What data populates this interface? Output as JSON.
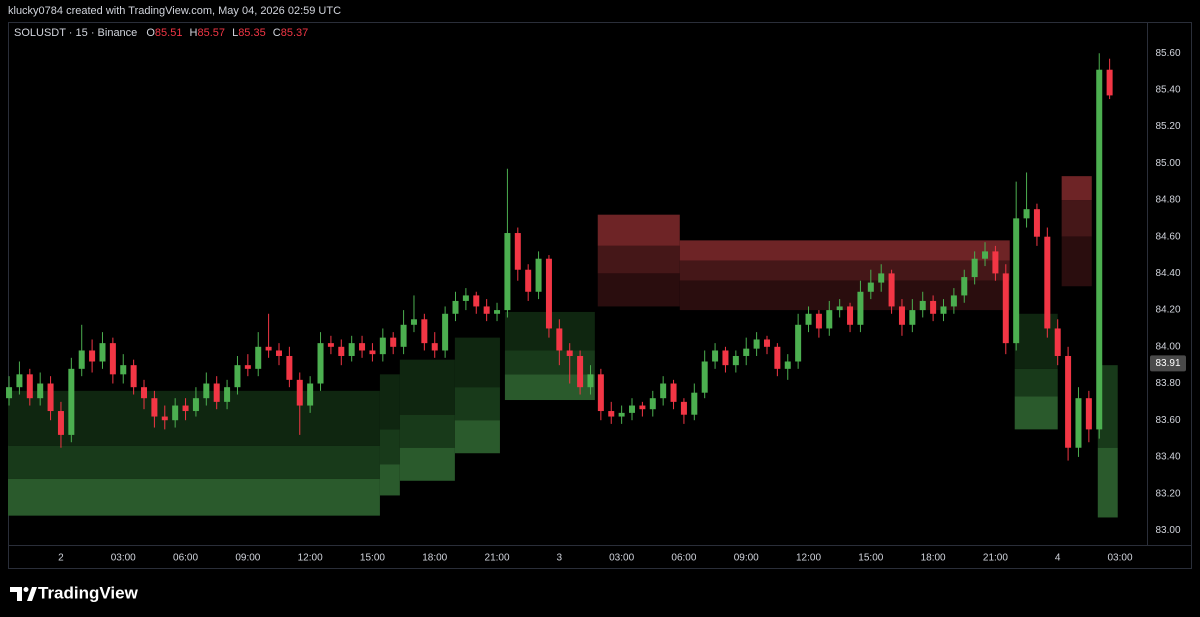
{
  "chart_data": {
    "type": "candlestick",
    "attribution": "klucky0784 created with TradingView.com, May 04, 2026 02:59 UTC",
    "title": "SOLUSDT · 15 · Binance",
    "ohlc_labels": [
      "O",
      "H",
      "L",
      "C"
    ],
    "brand": "TradingView",
    "up_color": "#4caf50",
    "down_color": "#f23645",
    "grid": false,
    "xlim": [
      -2.55,
      52.3
    ],
    "ylim": [
      82.92,
      85.77
    ],
    "xticks": [
      {
        "value": 0,
        "label": "2"
      },
      {
        "value": 3,
        "label": "03:00"
      },
      {
        "value": 6,
        "label": "06:00"
      },
      {
        "value": 9,
        "label": "09:00"
      },
      {
        "value": 12,
        "label": "12:00"
      },
      {
        "value": 15,
        "label": "15:00"
      },
      {
        "value": 18,
        "label": "18:00"
      },
      {
        "value": 21,
        "label": "21:00"
      },
      {
        "value": 24,
        "label": "3"
      },
      {
        "value": 27,
        "label": "03:00"
      },
      {
        "value": 30,
        "label": "06:00"
      },
      {
        "value": 33,
        "label": "09:00"
      },
      {
        "value": 36,
        "label": "12:00"
      },
      {
        "value": 39,
        "label": "15:00"
      },
      {
        "value": 42,
        "label": "18:00"
      },
      {
        "value": 45,
        "label": "21:00"
      },
      {
        "value": 48,
        "label": "4"
      },
      {
        "value": 51,
        "label": "03:00"
      }
    ],
    "yticks": [
      {
        "value": 83.0,
        "label": "83.00"
      },
      {
        "value": 83.2,
        "label": "83.20"
      },
      {
        "value": 83.4,
        "label": "83.40"
      },
      {
        "value": 83.6,
        "label": "83.60"
      },
      {
        "value": 83.8,
        "label": "83.80"
      },
      {
        "value": 84.0,
        "label": "84.00"
      },
      {
        "value": 84.2,
        "label": "84.20"
      },
      {
        "value": 84.4,
        "label": "84.40"
      },
      {
        "value": 84.6,
        "label": "84.60"
      },
      {
        "value": 84.8,
        "label": "84.80"
      },
      {
        "value": 85.0,
        "label": "85.00"
      },
      {
        "value": 85.2,
        "label": "85.20"
      },
      {
        "value": 85.4,
        "label": "85.40"
      },
      {
        "value": 85.6,
        "label": "85.60"
      }
    ],
    "marker_value": 83.91,
    "x": [
      -2.5,
      -2,
      -1.5,
      -1,
      -0.5,
      0,
      0.5,
      1,
      1.5,
      2,
      2.5,
      3,
      3.5,
      4,
      4.5,
      5,
      5.5,
      6,
      6.5,
      7,
      7.5,
      8,
      8.5,
      9,
      9.5,
      10,
      10.5,
      11,
      11.5,
      12,
      12.5,
      13,
      13.5,
      14,
      14.5,
      15,
      15.5,
      16,
      16.5,
      17,
      17.5,
      18,
      18.5,
      19,
      19.5,
      20,
      20.5,
      21,
      21.5,
      22,
      22.5,
      23,
      23.5,
      24,
      24.5,
      25,
      25.5,
      26,
      26.5,
      27,
      27.5,
      28,
      28.5,
      29,
      29.5,
      30,
      30.5,
      31,
      31.5,
      32,
      32.5,
      33,
      33.5,
      34,
      34.5,
      35,
      35.5,
      36,
      36.5,
      37,
      37.5,
      38,
      38.5,
      39,
      39.5,
      40,
      40.5,
      41,
      41.5,
      42,
      42.5,
      43,
      43.5,
      44,
      44.5,
      45,
      45.5,
      46,
      46.5,
      47,
      47.5,
      48,
      48.5,
      49,
      49.5,
      50,
      50.5
    ],
    "open": [
      83.72,
      83.78,
      83.85,
      83.72,
      83.8,
      83.65,
      83.52,
      83.88,
      83.98,
      83.92,
      84.02,
      83.85,
      83.9,
      83.78,
      83.72,
      83.62,
      83.6,
      83.68,
      83.65,
      83.72,
      83.8,
      83.7,
      83.78,
      83.9,
      83.88,
      84.0,
      83.98,
      83.95,
      83.82,
      83.68,
      83.8,
      84.02,
      84.0,
      83.95,
      84.02,
      83.98,
      83.96,
      84.05,
      84.0,
      84.12,
      84.15,
      84.02,
      83.98,
      84.18,
      84.25,
      84.28,
      84.22,
      84.18,
      84.2,
      84.62,
      84.42,
      84.3,
      84.48,
      84.1,
      83.98,
      83.95,
      83.78,
      83.85,
      83.65,
      83.62,
      83.64,
      83.68,
      83.66,
      83.72,
      83.8,
      83.7,
      83.63,
      83.75,
      83.92,
      83.98,
      83.9,
      83.95,
      83.99,
      84.04,
      84.0,
      83.88,
      83.92,
      84.12,
      84.18,
      84.1,
      84.2,
      84.22,
      84.12,
      84.3,
      84.35,
      84.4,
      84.22,
      84.12,
      84.2,
      84.25,
      84.18,
      84.22,
      84.28,
      84.38,
      84.48,
      84.52,
      84.4,
      84.02,
      84.7,
      84.75,
      84.6,
      84.1,
      83.95,
      83.45,
      83.72,
      83.55,
      85.51
    ],
    "high": [
      83.84,
      83.92,
      83.88,
      83.86,
      83.84,
      83.7,
      83.94,
      84.12,
      84.04,
      84.08,
      84.05,
      83.96,
      83.93,
      83.82,
      83.76,
      83.68,
      83.72,
      83.72,
      83.78,
      83.86,
      83.84,
      83.82,
      83.95,
      83.96,
      84.08,
      84.18,
      84.02,
      84.0,
      83.86,
      83.84,
      84.08,
      84.06,
      84.04,
      84.06,
      84.06,
      84.02,
      84.1,
      84.08,
      84.2,
      84.28,
      84.18,
      84.08,
      84.22,
      84.3,
      84.32,
      84.3,
      84.26,
      84.24,
      84.97,
      84.65,
      84.45,
      84.52,
      84.5,
      84.15,
      84.02,
      83.98,
      83.9,
      83.88,
      83.7,
      83.68,
      83.72,
      83.7,
      83.76,
      83.84,
      83.82,
      83.72,
      83.8,
      83.98,
      84.02,
      84.0,
      83.98,
      84.05,
      84.08,
      84.06,
      84.02,
      83.96,
      84.18,
      84.22,
      84.2,
      84.25,
      84.26,
      84.24,
      84.36,
      84.42,
      84.45,
      84.42,
      84.26,
      84.26,
      84.3,
      84.28,
      84.26,
      84.32,
      84.42,
      84.52,
      84.57,
      84.55,
      84.45,
      84.9,
      84.95,
      84.78,
      84.65,
      84.15,
      84.0,
      83.78,
      83.76,
      85.6,
      85.57
    ],
    "low": [
      83.68,
      83.74,
      83.68,
      83.68,
      83.6,
      83.45,
      83.48,
      83.84,
      83.86,
      83.88,
      83.8,
      83.8,
      83.74,
      83.66,
      83.56,
      83.55,
      83.56,
      83.6,
      83.62,
      83.68,
      83.66,
      83.66,
      83.74,
      83.84,
      83.84,
      83.94,
      83.9,
      83.78,
      83.52,
      83.64,
      83.76,
      83.96,
      83.9,
      83.92,
      83.94,
      83.92,
      83.92,
      83.96,
      83.96,
      84.08,
      83.98,
      83.94,
      83.94,
      84.14,
      84.2,
      84.18,
      84.14,
      84.14,
      84.16,
      84.36,
      84.25,
      84.26,
      84.05,
      83.9,
      83.8,
      83.74,
      83.74,
      83.6,
      83.58,
      83.58,
      83.6,
      83.62,
      83.62,
      83.68,
      83.66,
      83.58,
      83.6,
      83.72,
      83.88,
      83.86,
      83.86,
      83.9,
      83.95,
      83.96,
      83.84,
      83.82,
      83.88,
      84.08,
      84.05,
      84.06,
      84.16,
      84.08,
      84.08,
      84.26,
      84.3,
      84.18,
      84.06,
      84.08,
      84.16,
      84.14,
      84.14,
      84.18,
      84.24,
      84.34,
      84.44,
      84.36,
      83.96,
      83.98,
      84.65,
      84.55,
      84.05,
      83.9,
      83.38,
      83.4,
      83.48,
      83.5,
      85.35
    ],
    "close": [
      83.78,
      83.85,
      83.72,
      83.8,
      83.65,
      83.52,
      83.88,
      83.98,
      83.92,
      84.02,
      83.85,
      83.9,
      83.78,
      83.72,
      83.62,
      83.6,
      83.68,
      83.65,
      83.72,
      83.8,
      83.7,
      83.78,
      83.9,
      83.88,
      84.0,
      83.98,
      83.95,
      83.82,
      83.68,
      83.8,
      84.02,
      84.0,
      83.95,
      84.02,
      83.98,
      83.96,
      84.05,
      84.0,
      84.12,
      84.15,
      84.02,
      83.98,
      84.18,
      84.25,
      84.28,
      84.22,
      84.18,
      84.2,
      84.62,
      84.42,
      84.3,
      84.48,
      84.1,
      83.98,
      83.95,
      83.78,
      83.85,
      83.65,
      83.62,
      83.64,
      83.68,
      83.66,
      83.72,
      83.8,
      83.7,
      83.63,
      83.75,
      83.92,
      83.98,
      83.9,
      83.95,
      83.99,
      84.04,
      84.0,
      83.88,
      83.92,
      84.12,
      84.18,
      84.1,
      84.2,
      84.22,
      84.12,
      84.3,
      84.35,
      84.4,
      84.22,
      84.12,
      84.2,
      84.25,
      84.18,
      84.22,
      84.28,
      84.38,
      84.48,
      84.52,
      84.4,
      84.02,
      84.7,
      84.75,
      84.6,
      84.1,
      83.95,
      83.45,
      83.72,
      83.55,
      85.51,
      85.37
    ],
    "zones": [
      {
        "x": [
          -2.55,
          15.36
        ],
        "y": [
          83.46,
          83.76
        ],
        "color": "#0f2610"
      },
      {
        "x": [
          -2.55,
          15.36
        ],
        "y": [
          83.28,
          83.46
        ],
        "color": "#183a1a"
      },
      {
        "x": [
          -2.55,
          15.36
        ],
        "y": [
          83.08,
          83.28
        ],
        "color": "#2a5a2c"
      },
      {
        "x": [
          15.36,
          16.32
        ],
        "y": [
          83.55,
          83.85
        ],
        "color": "#0f2610"
      },
      {
        "x": [
          15.36,
          16.32
        ],
        "y": [
          83.36,
          83.55
        ],
        "color": "#183a1a"
      },
      {
        "x": [
          15.36,
          16.32
        ],
        "y": [
          83.19,
          83.36
        ],
        "color": "#2a5a2c"
      },
      {
        "x": [
          16.32,
          18.97
        ],
        "y": [
          83.63,
          83.93
        ],
        "color": "#0f2610"
      },
      {
        "x": [
          16.32,
          18.97
        ],
        "y": [
          83.45,
          83.63
        ],
        "color": "#183a1a"
      },
      {
        "x": [
          16.32,
          18.97
        ],
        "y": [
          83.27,
          83.45
        ],
        "color": "#2a5a2c"
      },
      {
        "x": [
          18.97,
          21.14
        ],
        "y": [
          83.78,
          84.05
        ],
        "color": "#0f2610"
      },
      {
        "x": [
          18.97,
          21.14
        ],
        "y": [
          83.6,
          83.78
        ],
        "color": "#183a1a"
      },
      {
        "x": [
          18.97,
          21.14
        ],
        "y": [
          83.42,
          83.6
        ],
        "color": "#2a5a2c"
      },
      {
        "x": [
          21.38,
          25.71
        ],
        "y": [
          83.98,
          84.19
        ],
        "color": "#0f2610"
      },
      {
        "x": [
          21.38,
          25.71
        ],
        "y": [
          83.85,
          83.98
        ],
        "color": "#183a1a"
      },
      {
        "x": [
          21.38,
          25.71
        ],
        "y": [
          83.71,
          83.85
        ],
        "color": "#2a5a2c"
      },
      {
        "x": [
          25.85,
          29.8
        ],
        "y": [
          84.55,
          84.72
        ],
        "color": "#6e2426"
      },
      {
        "x": [
          25.85,
          29.8
        ],
        "y": [
          84.4,
          84.55
        ],
        "color": "#451718"
      },
      {
        "x": [
          25.85,
          29.8
        ],
        "y": [
          84.22,
          84.4
        ],
        "color": "#2a0d0e"
      },
      {
        "x": [
          29.8,
          45.69
        ],
        "y": [
          84.47,
          84.58
        ],
        "color": "#6e2426"
      },
      {
        "x": [
          29.8,
          45.69
        ],
        "y": [
          84.36,
          84.47
        ],
        "color": "#451718"
      },
      {
        "x": [
          29.8,
          45.69
        ],
        "y": [
          84.2,
          84.36
        ],
        "color": "#2a0d0e"
      },
      {
        "x": [
          45.93,
          48.0
        ],
        "y": [
          83.88,
          84.18
        ],
        "color": "#0f2610"
      },
      {
        "x": [
          45.93,
          48.0
        ],
        "y": [
          83.73,
          83.88
        ],
        "color": "#183a1a"
      },
      {
        "x": [
          45.93,
          48.0
        ],
        "y": [
          83.55,
          83.73
        ],
        "color": "#2a5a2c"
      },
      {
        "x": [
          48.19,
          49.64
        ],
        "y": [
          84.8,
          84.93
        ],
        "color": "#6e2426"
      },
      {
        "x": [
          48.19,
          49.64
        ],
        "y": [
          84.6,
          84.8
        ],
        "color": "#451718"
      },
      {
        "x": [
          48.19,
          49.64
        ],
        "y": [
          84.33,
          84.6
        ],
        "color": "#2a0d0e"
      },
      {
        "x": [
          49.93,
          50.89
        ],
        "y": [
          83.45,
          83.9
        ],
        "color": "#183a1a"
      },
      {
        "x": [
          49.93,
          50.89
        ],
        "y": [
          83.07,
          83.45
        ],
        "color": "#2a5a2c"
      }
    ]
  }
}
